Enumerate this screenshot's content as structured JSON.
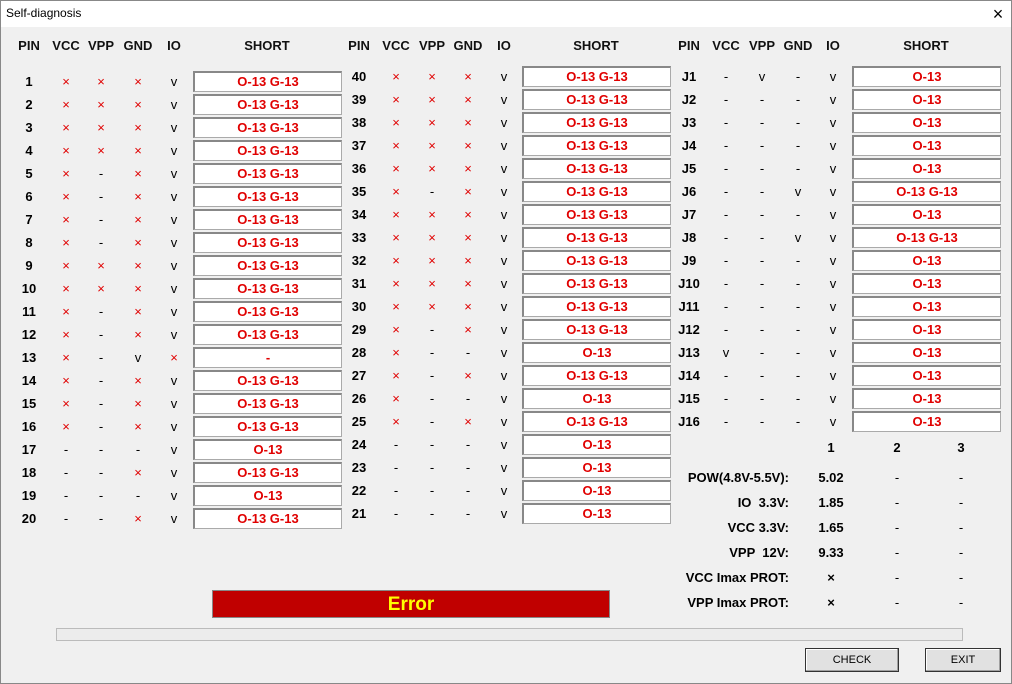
{
  "window": {
    "title": "Self-diagnosis",
    "close_icon": "×"
  },
  "headers": [
    "PIN",
    "VCC",
    "VPP",
    "GND",
    "IO",
    "SHORT"
  ],
  "colors": {
    "fail": "#e00000",
    "error_bg": "#c00000",
    "error_text": "#ffff00"
  },
  "columns": [
    {
      "rows": [
        [
          "1",
          "×",
          "×",
          "×",
          "v",
          "O-13 G-13"
        ],
        [
          "2",
          "×",
          "×",
          "×",
          "v",
          "O-13 G-13"
        ],
        [
          "3",
          "×",
          "×",
          "×",
          "v",
          "O-13 G-13"
        ],
        [
          "4",
          "×",
          "×",
          "×",
          "v",
          "O-13 G-13"
        ],
        [
          "5",
          "×",
          "-",
          "×",
          "v",
          "O-13 G-13"
        ],
        [
          "6",
          "×",
          "-",
          "×",
          "v",
          "O-13 G-13"
        ],
        [
          "7",
          "×",
          "-",
          "×",
          "v",
          "O-13 G-13"
        ],
        [
          "8",
          "×",
          "-",
          "×",
          "v",
          "O-13 G-13"
        ],
        [
          "9",
          "×",
          "×",
          "×",
          "v",
          "O-13 G-13"
        ],
        [
          "10",
          "×",
          "×",
          "×",
          "v",
          "O-13 G-13"
        ],
        [
          "11",
          "×",
          "-",
          "×",
          "v",
          "O-13 G-13"
        ],
        [
          "12",
          "×",
          "-",
          "×",
          "v",
          "O-13 G-13"
        ],
        [
          "13",
          "×",
          "-",
          "v",
          "×",
          "-"
        ],
        [
          "14",
          "×",
          "-",
          "×",
          "v",
          "O-13 G-13"
        ],
        [
          "15",
          "×",
          "-",
          "×",
          "v",
          "O-13 G-13"
        ],
        [
          "16",
          "×",
          "-",
          "×",
          "v",
          "O-13 G-13"
        ],
        [
          "17",
          "-",
          "-",
          "-",
          "v",
          "O-13"
        ],
        [
          "18",
          "-",
          "-",
          "×",
          "v",
          "O-13 G-13"
        ],
        [
          "19",
          "-",
          "-",
          "-",
          "v",
          "O-13"
        ],
        [
          "20",
          "-",
          "-",
          "×",
          "v",
          "O-13 G-13"
        ]
      ]
    },
    {
      "rows": [
        [
          "40",
          "×",
          "×",
          "×",
          "v",
          "O-13 G-13"
        ],
        [
          "39",
          "×",
          "×",
          "×",
          "v",
          "O-13 G-13"
        ],
        [
          "38",
          "×",
          "×",
          "×",
          "v",
          "O-13 G-13"
        ],
        [
          "37",
          "×",
          "×",
          "×",
          "v",
          "O-13 G-13"
        ],
        [
          "36",
          "×",
          "×",
          "×",
          "v",
          "O-13 G-13"
        ],
        [
          "35",
          "×",
          "-",
          "×",
          "v",
          "O-13 G-13"
        ],
        [
          "34",
          "×",
          "×",
          "×",
          "v",
          "O-13 G-13"
        ],
        [
          "33",
          "×",
          "×",
          "×",
          "v",
          "O-13 G-13"
        ],
        [
          "32",
          "×",
          "×",
          "×",
          "v",
          "O-13 G-13"
        ],
        [
          "31",
          "×",
          "×",
          "×",
          "v",
          "O-13 G-13"
        ],
        [
          "30",
          "×",
          "×",
          "×",
          "v",
          "O-13 G-13"
        ],
        [
          "29",
          "×",
          "-",
          "×",
          "v",
          "O-13 G-13"
        ],
        [
          "28",
          "×",
          "-",
          "-",
          "v",
          "O-13"
        ],
        [
          "27",
          "×",
          "-",
          "×",
          "v",
          "O-13 G-13"
        ],
        [
          "26",
          "×",
          "-",
          "-",
          "v",
          "O-13"
        ],
        [
          "25",
          "×",
          "-",
          "×",
          "v",
          "O-13 G-13"
        ],
        [
          "24",
          "-",
          "-",
          "-",
          "v",
          "O-13"
        ],
        [
          "23",
          "-",
          "-",
          "-",
          "v",
          "O-13"
        ],
        [
          "22",
          "-",
          "-",
          "-",
          "v",
          "O-13"
        ],
        [
          "21",
          "-",
          "-",
          "-",
          "v",
          "O-13"
        ]
      ]
    },
    {
      "rows": [
        [
          "J1",
          "-",
          "v",
          "-",
          "v",
          "O-13"
        ],
        [
          "J2",
          "-",
          "-",
          "-",
          "v",
          "O-13"
        ],
        [
          "J3",
          "-",
          "-",
          "-",
          "v",
          "O-13"
        ],
        [
          "J4",
          "-",
          "-",
          "-",
          "v",
          "O-13"
        ],
        [
          "J5",
          "-",
          "-",
          "-",
          "v",
          "O-13"
        ],
        [
          "J6",
          "-",
          "-",
          "v",
          "v",
          "O-13 G-13"
        ],
        [
          "J7",
          "-",
          "-",
          "-",
          "v",
          "O-13"
        ],
        [
          "J8",
          "-",
          "-",
          "v",
          "v",
          "O-13 G-13"
        ],
        [
          "J9",
          "-",
          "-",
          "-",
          "v",
          "O-13"
        ],
        [
          "J10",
          "-",
          "-",
          "-",
          "v",
          "O-13"
        ],
        [
          "J11",
          "-",
          "-",
          "-",
          "v",
          "O-13"
        ],
        [
          "J12",
          "-",
          "-",
          "-",
          "v",
          "O-13"
        ],
        [
          "J13",
          "v",
          "-",
          "-",
          "v",
          "O-13"
        ],
        [
          "J14",
          "-",
          "-",
          "-",
          "v",
          "O-13"
        ],
        [
          "J15",
          "-",
          "-",
          "-",
          "v",
          "O-13"
        ],
        [
          "J16",
          "-",
          "-",
          "-",
          "v",
          "O-13"
        ]
      ]
    }
  ],
  "power": {
    "columns": [
      "1",
      "2",
      "3"
    ],
    "rows": [
      {
        "label": "POW(4.8V-5.5V):",
        "values": [
          "5.02",
          "-",
          "-"
        ]
      },
      {
        "label": "IO  3.3V:",
        "values": [
          "1.85",
          "-",
          "-"
        ]
      },
      {
        "label": "VCC 3.3V:",
        "values": [
          "1.65",
          "-",
          "-"
        ]
      },
      {
        "label": "VPP  12V:",
        "values": [
          "9.33",
          "-",
          "-"
        ]
      },
      {
        "label": "VCC Imax PROT:",
        "values": [
          "×",
          "-",
          "-"
        ]
      },
      {
        "label": "VPP Imax PROT:",
        "values": [
          "×",
          "-",
          "-"
        ]
      }
    ]
  },
  "status": {
    "text": "Error"
  },
  "progress": 0,
  "buttons": {
    "check": "CHECK",
    "exit": "EXIT"
  }
}
